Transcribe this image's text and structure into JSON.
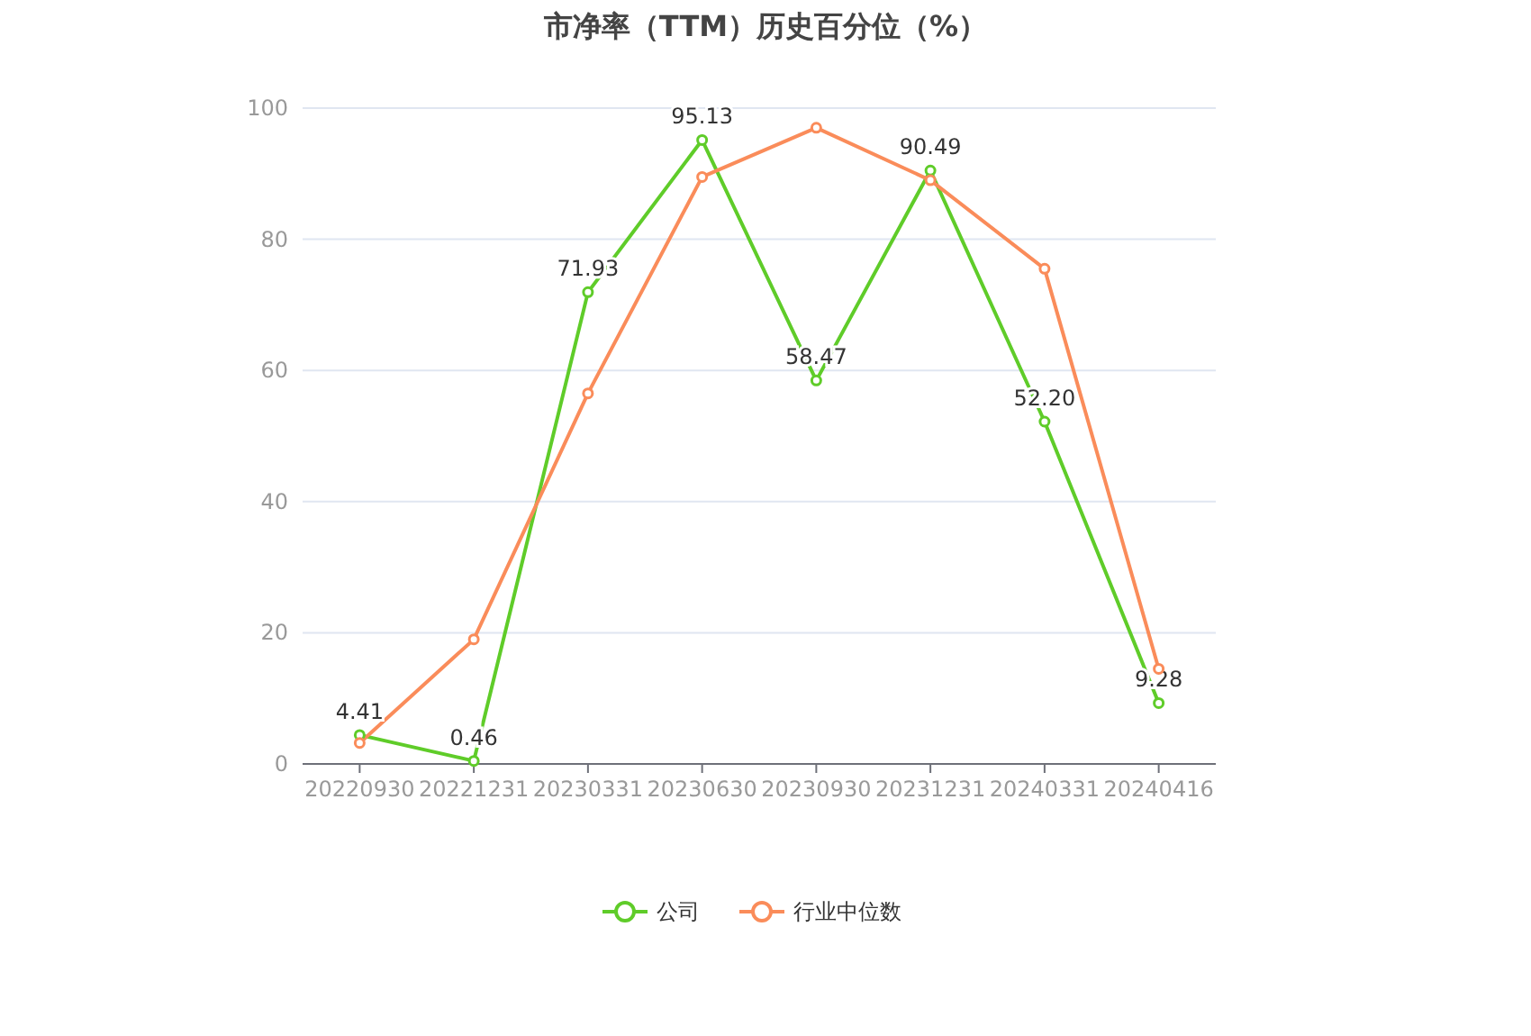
{
  "chart_data": {
    "type": "line",
    "title": "市净率（TTM）历史百分位（%）",
    "categories": [
      "20220930",
      "20221231",
      "20230331",
      "20230630",
      "20230930",
      "20231231",
      "20240331",
      "20240416"
    ],
    "series": [
      {
        "name": "公司",
        "color": "#5fcc29",
        "values": [
          4.41,
          0.46,
          71.93,
          95.13,
          58.47,
          90.49,
          52.2,
          9.28
        ],
        "value_labels": [
          "4.41",
          "0.46",
          "71.93",
          "95.13",
          "58.47",
          "90.49",
          "52.20",
          "9.28"
        ]
      },
      {
        "name": "行业中位数",
        "color": "#fa8c5a",
        "values": [
          3.2,
          19,
          56.5,
          89.5,
          97,
          89,
          75.5,
          14.5
        ]
      }
    ],
    "ylim": [
      0,
      100
    ],
    "yticks": [
      0,
      20,
      40,
      60,
      80,
      100
    ],
    "grid": "y",
    "legend": "bottom",
    "marker": "circle",
    "line_style": "solid"
  }
}
